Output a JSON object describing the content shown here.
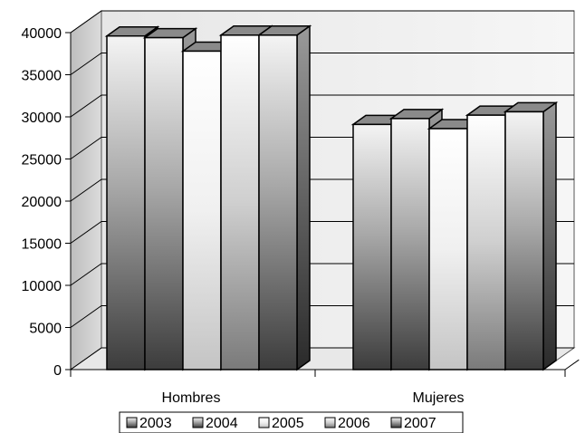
{
  "chart_data": {
    "type": "bar",
    "categories": [
      "Hombres",
      "Mujeres"
    ],
    "series": [
      {
        "name": "2003",
        "values": [
          39600,
          29100
        ]
      },
      {
        "name": "2004",
        "values": [
          39400,
          29800
        ]
      },
      {
        "name": "2005",
        "values": [
          37800,
          28600
        ]
      },
      {
        "name": "2006",
        "values": [
          39700,
          30200
        ]
      },
      {
        "name": "2007",
        "values": [
          39700,
          30600
        ]
      }
    ],
    "ylim": [
      0,
      40000
    ],
    "yticks": [
      0,
      5000,
      10000,
      15000,
      20000,
      25000,
      30000,
      35000,
      40000
    ],
    "grid": true,
    "legend_position": "bottom"
  }
}
